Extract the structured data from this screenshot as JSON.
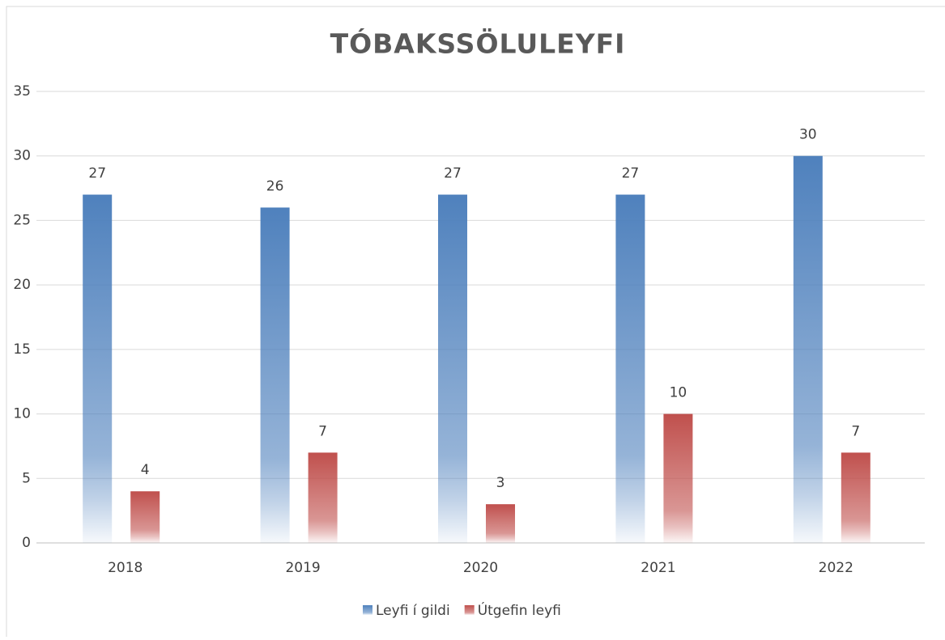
{
  "chart_data": {
    "type": "bar",
    "title": "TÓBAKSSÖLULEYFI",
    "categories": [
      "2018",
      "2019",
      "2020",
      "2021",
      "2022"
    ],
    "series": [
      {
        "name": "Leyfi í gildi",
        "color": "#4f81bd",
        "values": [
          27,
          26,
          27,
          27,
          30
        ]
      },
      {
        "name": "Útgefin leyfi",
        "color": "#c0504d",
        "values": [
          4,
          7,
          3,
          10,
          7
        ]
      }
    ],
    "ylim": [
      0,
      35
    ],
    "yticks": [
      0,
      5,
      10,
      15,
      20,
      25,
      30,
      35
    ],
    "grid": true,
    "legend": "bottom"
  }
}
